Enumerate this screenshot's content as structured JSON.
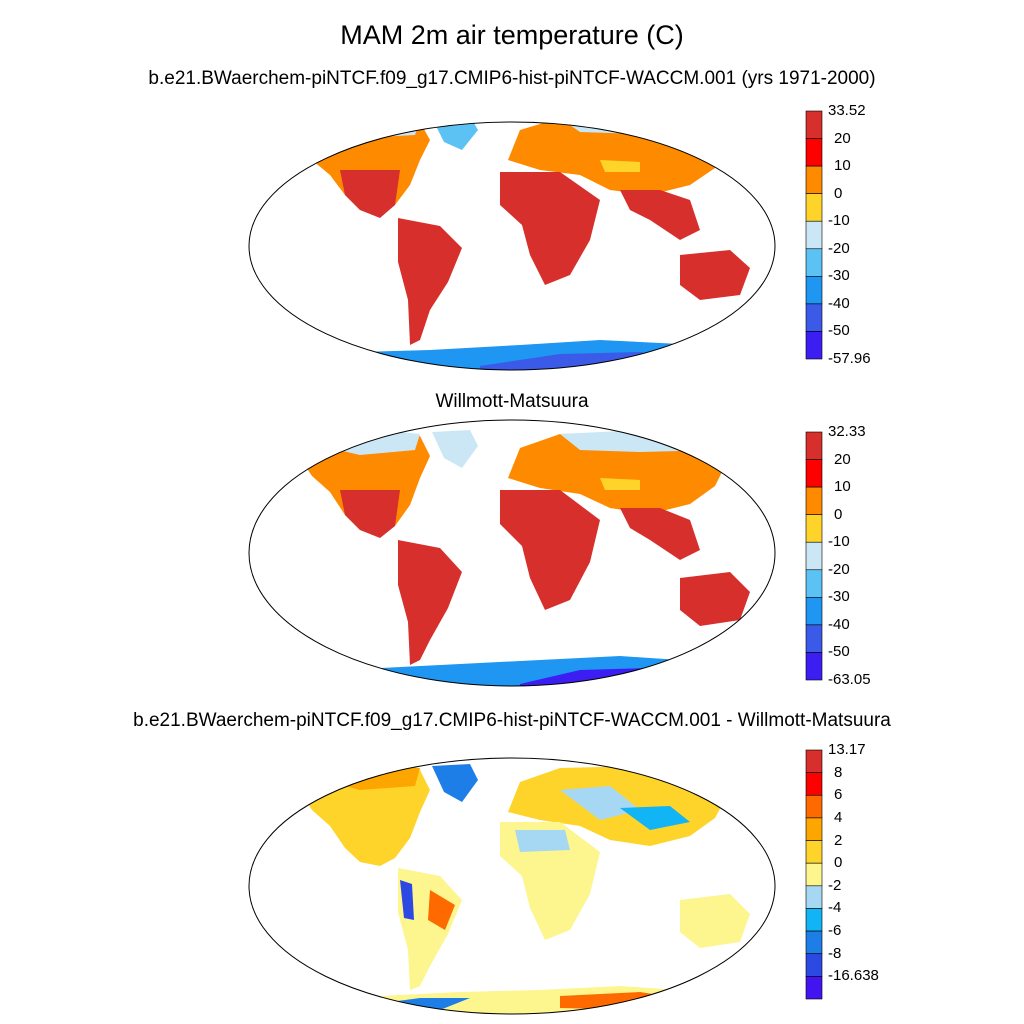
{
  "main_title": "MAM 2m air temperature (C)",
  "panels": [
    {
      "title": "b.e21.BWaerchem-piNTCF.f09_g17.CMIP6-hist-piNTCF-WACCM.001 (yrs 1971-2000)",
      "colorbar": {
        "labels": [
          "33.52",
          "20",
          "10",
          "0",
          "-10",
          "-20",
          "-30",
          "-40",
          "-50",
          "-57.96"
        ],
        "colors": [
          "#d62f2c",
          "#fe0000",
          "#fe8a00",
          "#fed42a",
          "#cbe7f6",
          "#5cc2f4",
          "#1e96f2",
          "#3b5ae8",
          "#3d1ef2"
        ]
      }
    },
    {
      "title": "Willmott-Matsuura",
      "colorbar": {
        "labels": [
          "32.33",
          "20",
          "10",
          "0",
          "-10",
          "-20",
          "-30",
          "-40",
          "-50",
          "-63.05"
        ],
        "colors": [
          "#d62f2c",
          "#fe0000",
          "#fe8a00",
          "#fed42a",
          "#cbe7f6",
          "#5cc2f4",
          "#1e96f2",
          "#3b5ae8",
          "#3d1ef2"
        ]
      }
    },
    {
      "title": "b.e21.BWaerchem-piNTCF.f09_g17.CMIP6-hist-piNTCF-WACCM.001 - Willmott-Matsuura",
      "colorbar": {
        "labels": [
          "13.17",
          "8",
          "6",
          "4",
          "2",
          "0",
          "-2",
          "-4",
          "-6",
          "-8",
          "-16.638"
        ],
        "colors": [
          "#d62f2c",
          "#fe0000",
          "#fe6a00",
          "#fea600",
          "#fed42a",
          "#fdf58e",
          "#a7d8f3",
          "#11b4f5",
          "#1e7ee8",
          "#2d49e4",
          "#4214f0"
        ]
      }
    }
  ]
}
